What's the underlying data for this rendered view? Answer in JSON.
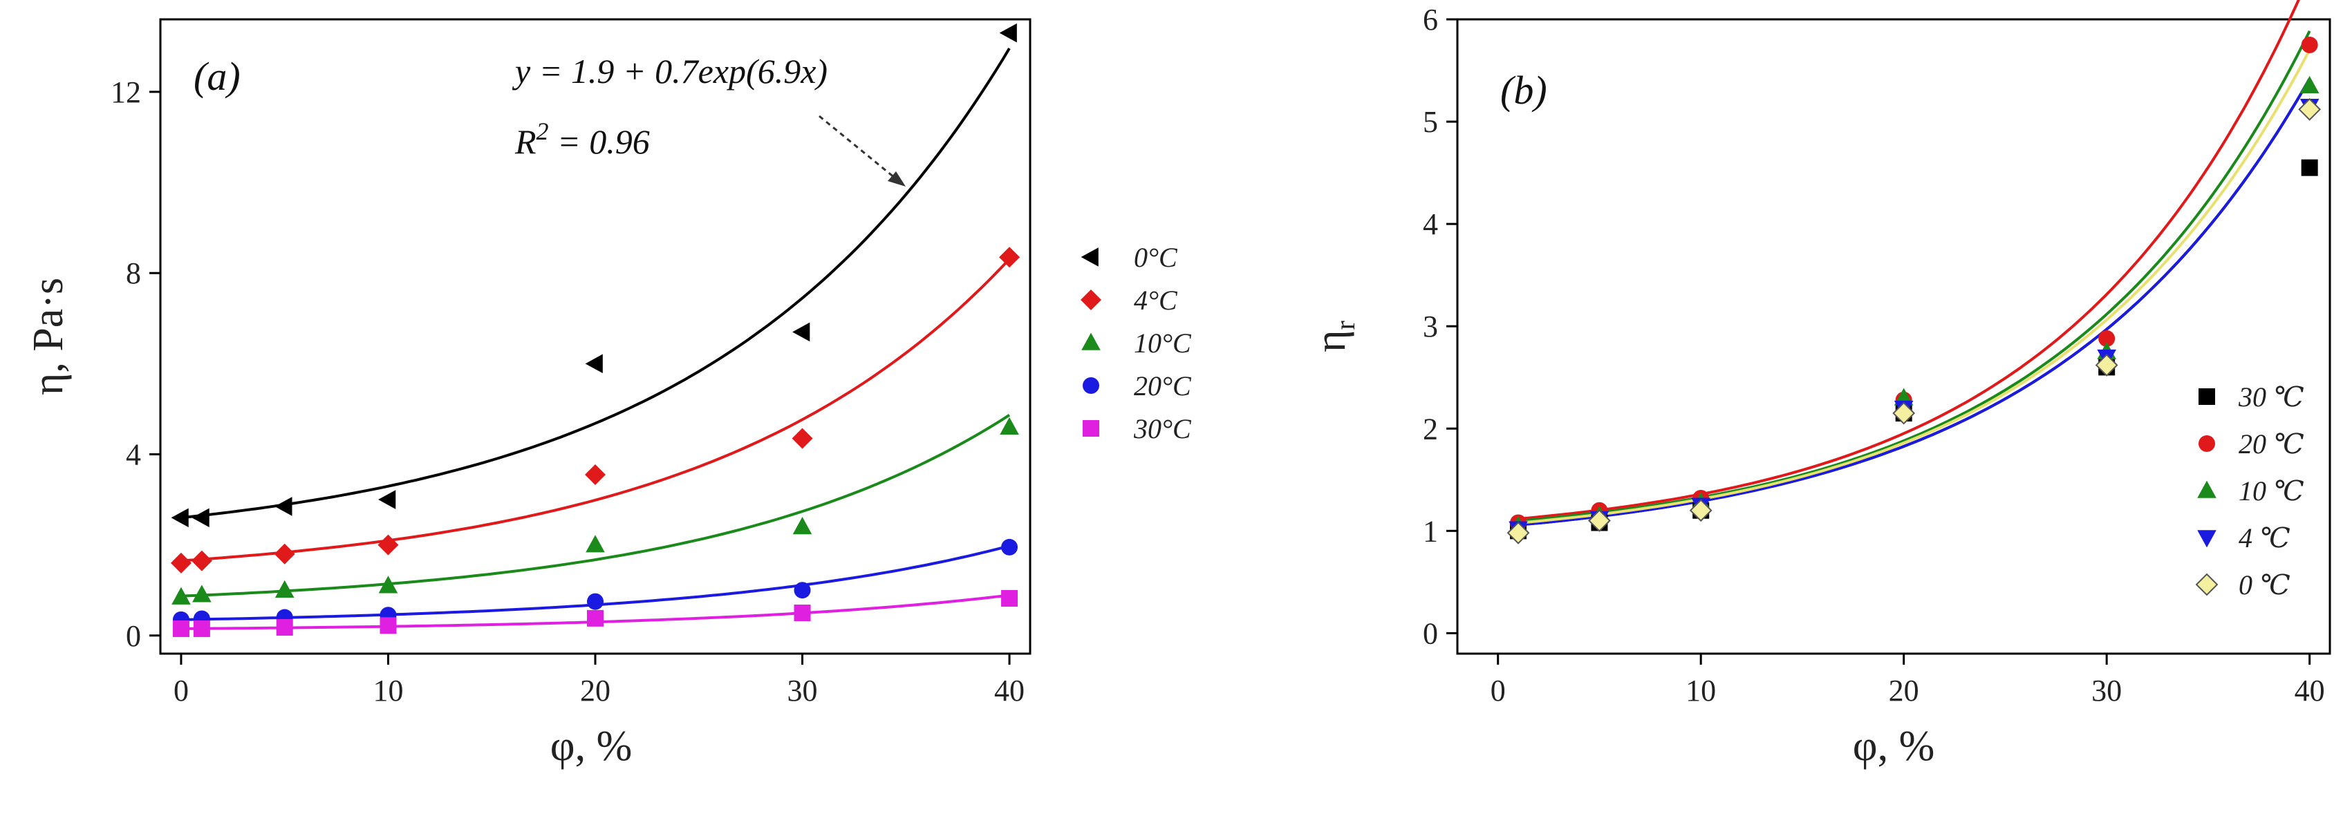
{
  "chart_data": [
    {
      "id": "a",
      "type": "scatter",
      "panel_label": "(a)",
      "xlabel": "φ, %",
      "ylabel": "η, Pa·s",
      "xlim": [
        -1,
        41
      ],
      "ylim": [
        -0.4,
        13.6
      ],
      "xticks": [
        0,
        10,
        20,
        30,
        40
      ],
      "yticks": [
        0,
        4,
        8,
        12
      ],
      "legend_position": "right-outside",
      "series": [
        {
          "name": "0°C",
          "color": "#000000",
          "marker": "triangle-left",
          "x": [
            0,
            1,
            5,
            10,
            20,
            30,
            40
          ],
          "y": [
            2.6,
            2.6,
            2.85,
            3.0,
            6.0,
            6.7,
            13.3
          ],
          "fit": {
            "a": 1.9,
            "b": 0.7,
            "c": 6.9
          }
        },
        {
          "name": "4°C",
          "color": "#e01a1a",
          "marker": "diamond",
          "x": [
            0,
            1,
            5,
            10,
            20,
            30,
            40
          ],
          "y": [
            1.6,
            1.65,
            1.8,
            2.0,
            3.55,
            4.35,
            8.35
          ],
          "fit": {
            "a": 1.2,
            "b": 0.45,
            "c": 6.9
          }
        },
        {
          "name": "10°C",
          "color": "#1a8a1a",
          "marker": "triangle-up",
          "x": [
            0,
            1,
            5,
            10,
            20,
            30,
            40
          ],
          "y": [
            0.85,
            0.9,
            1.0,
            1.1,
            2.0,
            2.4,
            4.6
          ],
          "fit": {
            "a": 0.6,
            "b": 0.27,
            "c": 6.9
          }
        },
        {
          "name": "20°C",
          "color": "#1a1ae0",
          "marker": "circle",
          "x": [
            0,
            1,
            5,
            10,
            20,
            30,
            40
          ],
          "y": [
            0.35,
            0.37,
            0.4,
            0.45,
            0.75,
            1.0,
            1.95
          ],
          "fit": {
            "a": 0.24,
            "b": 0.11,
            "c": 6.9
          }
        },
        {
          "name": "30°C",
          "color": "#e020e0",
          "marker": "square",
          "x": [
            0,
            1,
            5,
            10,
            20,
            30,
            40
          ],
          "y": [
            0.15,
            0.15,
            0.18,
            0.22,
            0.38,
            0.5,
            0.82
          ],
          "fit": {
            "a": 0.1,
            "b": 0.05,
            "c": 6.9
          }
        }
      ],
      "annotation": {
        "equation": "y = 1.9 + 0.7exp(6.9x)",
        "r2_prefix": "R",
        "r2_exp": "2",
        "r2_value": " = 0.96",
        "arrow_to": [
          34.8,
          10.0
        ],
        "arrow_from_text": true
      }
    },
    {
      "id": "b",
      "type": "scatter",
      "panel_label": "(b)",
      "xlabel": "φ, %",
      "ylabel": "η",
      "ylabel_sub": "r",
      "xlim": [
        -2,
        41
      ],
      "ylim": [
        -0.2,
        6.0
      ],
      "xticks": [
        0,
        10,
        20,
        30,
        40
      ],
      "yticks": [
        0,
        1,
        2,
        3,
        4,
        5,
        6
      ],
      "legend_position": "bottom-right",
      "series": [
        {
          "name": "30 ℃",
          "color": "#000000",
          "marker": "square",
          "x": [
            1,
            5,
            10,
            20,
            30,
            40
          ],
          "y": [
            1.0,
            1.08,
            1.2,
            2.15,
            2.6,
            4.55
          ],
          "fit": {
            "a": 0.82,
            "b": 0.22,
            "c": 7.6
          }
        },
        {
          "name": "20 ℃",
          "color": "#e01a1a",
          "marker": "circle",
          "x": [
            1,
            5,
            10,
            20,
            30,
            40
          ],
          "y": [
            1.08,
            1.2,
            1.32,
            2.28,
            2.88,
            5.75
          ],
          "fit": {
            "a": 0.9,
            "b": 0.2,
            "c": 8.3
          }
        },
        {
          "name": "10 ℃",
          "color": "#1a8a1a",
          "marker": "triangle-up",
          "x": [
            1,
            5,
            10,
            20,
            30,
            40
          ],
          "y": [
            1.05,
            1.15,
            1.28,
            2.3,
            2.75,
            5.35
          ],
          "fit": {
            "a": 0.88,
            "b": 0.2,
            "c": 8.05
          }
        },
        {
          "name": "4 ℃",
          "color": "#1a1ae0",
          "marker": "triangle-down",
          "x": [
            1,
            5,
            10,
            20,
            30,
            40
          ],
          "y": [
            1.02,
            1.12,
            1.25,
            2.2,
            2.7,
            5.15
          ],
          "fit": {
            "a": 0.82,
            "b": 0.22,
            "c": 7.6
          }
        },
        {
          "name": "0 ℃",
          "color": "#f5f0a0",
          "edge": "#555555",
          "marker": "diamond",
          "x": [
            1,
            5,
            10,
            20,
            30,
            40
          ],
          "y": [
            0.98,
            1.1,
            1.2,
            2.15,
            2.62,
            5.12
          ],
          "fit": {
            "a": 0.85,
            "b": 0.21,
            "c": 7.85
          }
        }
      ]
    }
  ]
}
